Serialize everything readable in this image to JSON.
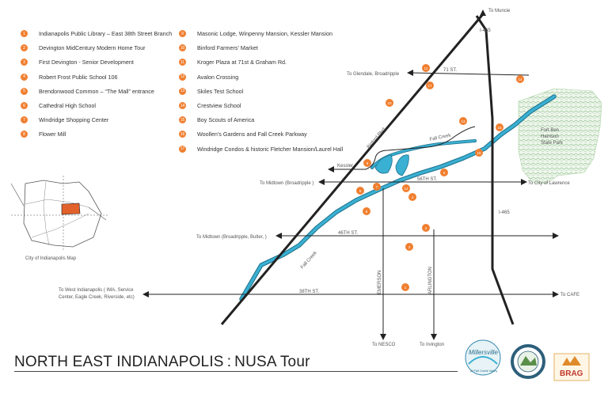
{
  "title": {
    "main": "NORTH EAST INDIANAPOLIS",
    "separator": ":",
    "sub": "NUSA Tour"
  },
  "legend": [
    {
      "num": "1",
      "label": "Indianapolis Public Library – East 38th Street Branch"
    },
    {
      "num": "2",
      "label": "Devington MidCentury Modern Home Tour"
    },
    {
      "num": "3",
      "label": "First Devington - Senior Development"
    },
    {
      "num": "4",
      "label": "Robert Frost Public School 106"
    },
    {
      "num": "5",
      "label": "Brendonwood Common – “The Mall” entrance"
    },
    {
      "num": "6",
      "label": "Cathedral High School"
    },
    {
      "num": "7",
      "label": "Windridge Shopping Center"
    },
    {
      "num": "8",
      "label": "Flower Mill"
    },
    {
      "num": "9",
      "label": "Masonic Lodge, Winpenny Mansion, Kessler Mansion"
    },
    {
      "num": "10",
      "label": "Binford Farmers’ Market"
    },
    {
      "num": "11",
      "label": "Kroger Plaza at 71st & Graham Rd."
    },
    {
      "num": "12",
      "label": "Avalon Crossing"
    },
    {
      "num": "13",
      "label": "Skiles Test School"
    },
    {
      "num": "14",
      "label": "Crestview School"
    },
    {
      "num": "15",
      "label": "Boy Scouts of America"
    },
    {
      "num": "16",
      "label": "Woollen’s Gardens and Fall Creek Parkway"
    },
    {
      "num": "17",
      "label": "Windridge Condos &  historic Fletcher Mansion/Laurel Hall"
    }
  ],
  "map_markers": [
    "1",
    "2",
    "3",
    "4",
    "5",
    "6",
    "7",
    "8",
    "9",
    "10",
    "11",
    "12",
    "13",
    "14",
    "15",
    "16",
    "17"
  ],
  "labels": {
    "to_muncie": "To Muncie",
    "i465_north": "I-465",
    "i465_east": "I-465",
    "to_glendale": "To Glendale, Broadripple",
    "st71": "71 ST.",
    "binford": "Binford Blvd.",
    "fall_creek_top": "Fall Creek",
    "fall_creek_river": "Fall Creek",
    "kessler": "Kessler",
    "to_midtown_broadripple": "To Midtown (Broadripple )",
    "st56": "56TH ST.",
    "to_city_lawrence": "To City of Lawrence",
    "fort_park_1": "Fort Ben",
    "fort_park_2": "Harrison",
    "fort_park_3": "State Park",
    "to_midtown_butler": "To Midtown (Broadripple, Butler, )",
    "st46": "46TH ST.",
    "emerson": "EMERSON",
    "arlington": "ARLINGTON",
    "to_west_1": "To West Indianapolis ( IMA, Service",
    "to_west_2": "Center, Eagle Creek, Riverside, etc)",
    "st38": "38TH ST.",
    "to_cafe": "To  CAFE",
    "to_nesco": "To NESCO",
    "to_irvington": "To Irvington",
    "city_map": "City of Indianapolis Map"
  },
  "logos": {
    "millersville": "Millersville",
    "millersville_sub": "at Fall Creek Valley",
    "brag": "BRAG"
  },
  "colors": {
    "marker": "#f07f30",
    "river": "#39a7c7",
    "road": "#222222",
    "park": "#8fc08a",
    "city_highlight": "#e2612b"
  }
}
